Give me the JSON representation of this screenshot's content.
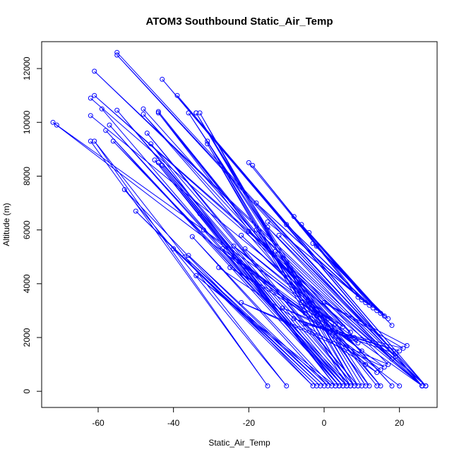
{
  "chart_data": {
    "type": "scatter",
    "title": "ATOM3 Southbound Static_Air_Temp",
    "xlabel": "Static_Air_Temp",
    "ylabel": "Altitude (m)",
    "xlim": [
      -75,
      30
    ],
    "ylim": [
      -600,
      13000
    ],
    "xticks": [
      -60,
      -40,
      -20,
      0,
      20
    ],
    "yticks": [
      0,
      2000,
      4000,
      6000,
      8000,
      10000,
      12000
    ],
    "grid": false,
    "series_color": "#0000ff",
    "series": [
      {
        "x": [
          -55,
          27,
          -55,
          26,
          -43,
          27,
          -39,
          26,
          -61,
          27,
          -61,
          26,
          -62,
          26,
          -62,
          26,
          -71,
          26,
          -72,
          20
        ],
        "y": [
          12600,
          200,
          12500,
          200,
          11600,
          200,
          11000,
          200,
          11900,
          200,
          11000,
          200,
          10900,
          200,
          10250,
          200,
          9900,
          200,
          10000,
          200
        ]
      },
      {
        "x": [
          -48,
          18,
          -48,
          15,
          -44,
          14,
          -44,
          12,
          -36,
          11,
          -34,
          10,
          -34,
          9,
          -33,
          8,
          -31,
          7,
          -31,
          6
        ],
        "y": [
          10500,
          200,
          10300,
          200,
          10400,
          200,
          10350,
          200,
          10350,
          200,
          10350,
          200,
          10350,
          200,
          10350,
          200,
          9300,
          200,
          9200,
          200
        ]
      },
      {
        "x": [
          -59,
          4,
          -58,
          5,
          -57,
          6,
          -56,
          7,
          -55,
          8,
          -47,
          9,
          -46,
          3,
          -45,
          4,
          -44,
          5,
          -43,
          6
        ],
        "y": [
          10500,
          200,
          9700,
          200,
          9900,
          200,
          9300,
          200,
          10450,
          200,
          9600,
          200,
          9200,
          200,
          8600,
          200,
          8500,
          200,
          8400,
          200
        ]
      },
      {
        "x": [
          -62,
          -15,
          -61,
          -10,
          -53,
          -3,
          -50,
          -2,
          -40,
          -1,
          -37,
          0,
          -36,
          1,
          -35,
          2,
          -34,
          3,
          -33,
          4
        ],
        "y": [
          9300,
          200,
          9300,
          200,
          7500,
          200,
          6700,
          200,
          5300,
          200,
          5000,
          200,
          5050,
          200,
          5750,
          200,
          4300,
          200,
          6600,
          200
        ]
      },
      {
        "x": [
          -20,
          9,
          -19,
          10,
          -18,
          11,
          -15,
          12,
          -10,
          13,
          -8,
          14,
          -6,
          15,
          -4,
          16,
          -3,
          17,
          -2,
          18
        ],
        "y": [
          8500,
          3500,
          8400,
          3400,
          7000,
          3300,
          6300,
          3200,
          6200,
          3100,
          6500,
          3000,
          6200,
          2900,
          5900,
          2800,
          5500,
          2700,
          5400,
          2450
        ]
      },
      {
        "x": [
          -32,
          -5,
          -25,
          -2,
          -24,
          1,
          -22,
          3,
          -21,
          5,
          -20,
          7,
          -13,
          8,
          -11,
          9,
          -6,
          10,
          -4,
          11
        ],
        "y": [
          6000,
          2900,
          4600,
          2800,
          5400,
          2700,
          5800,
          2500,
          5300,
          2400,
          5950,
          2200,
          5200,
          2000,
          3100,
          1800,
          3300,
          1500,
          3200,
          1000
        ]
      },
      {
        "x": [
          -28,
          14,
          -27,
          15,
          -24,
          16,
          -22,
          17,
          -18,
          18,
          -15,
          19,
          -12,
          19,
          -8,
          20,
          -5,
          21,
          0,
          22
        ],
        "y": [
          4600,
          700,
          5300,
          800,
          5000,
          900,
          3300,
          1000,
          6000,
          1200,
          6100,
          1300,
          5800,
          1400,
          2700,
          1500,
          2500,
          1600,
          3300,
          1700
        ]
      }
    ]
  }
}
